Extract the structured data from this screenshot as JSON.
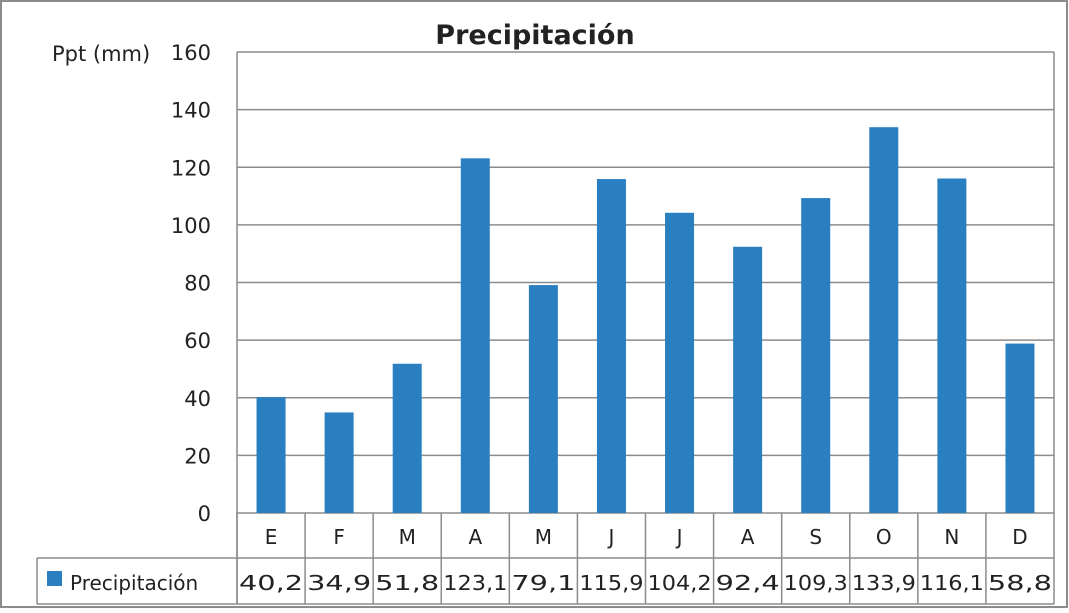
{
  "chart_data": {
    "type": "bar",
    "title": "Precipitación",
    "ylabel": "Ppt (mm)",
    "xlabel": "",
    "ylim": [
      0,
      160
    ],
    "yticks": [
      0,
      20,
      40,
      60,
      80,
      100,
      120,
      140,
      160
    ],
    "grid": true,
    "categories": [
      "E",
      "F",
      "M",
      "A",
      "M",
      "J",
      "J",
      "A",
      "S",
      "O",
      "N",
      "D"
    ],
    "series": [
      {
        "name": "Precipitación",
        "color": "#2a7fc1",
        "values": [
          40.2,
          34.9,
          51.8,
          123.1,
          79.1,
          115.9,
          104.2,
          92.4,
          109.3,
          133.9,
          116.1,
          58.8
        ],
        "labels": [
          "40,2",
          "34,9",
          "51,8",
          "123,1",
          "79,1",
          "115,9",
          "104,2",
          "92,4",
          "109,3",
          "133,9",
          "116,1",
          "58,8"
        ]
      }
    ],
    "legend": "data-table"
  }
}
